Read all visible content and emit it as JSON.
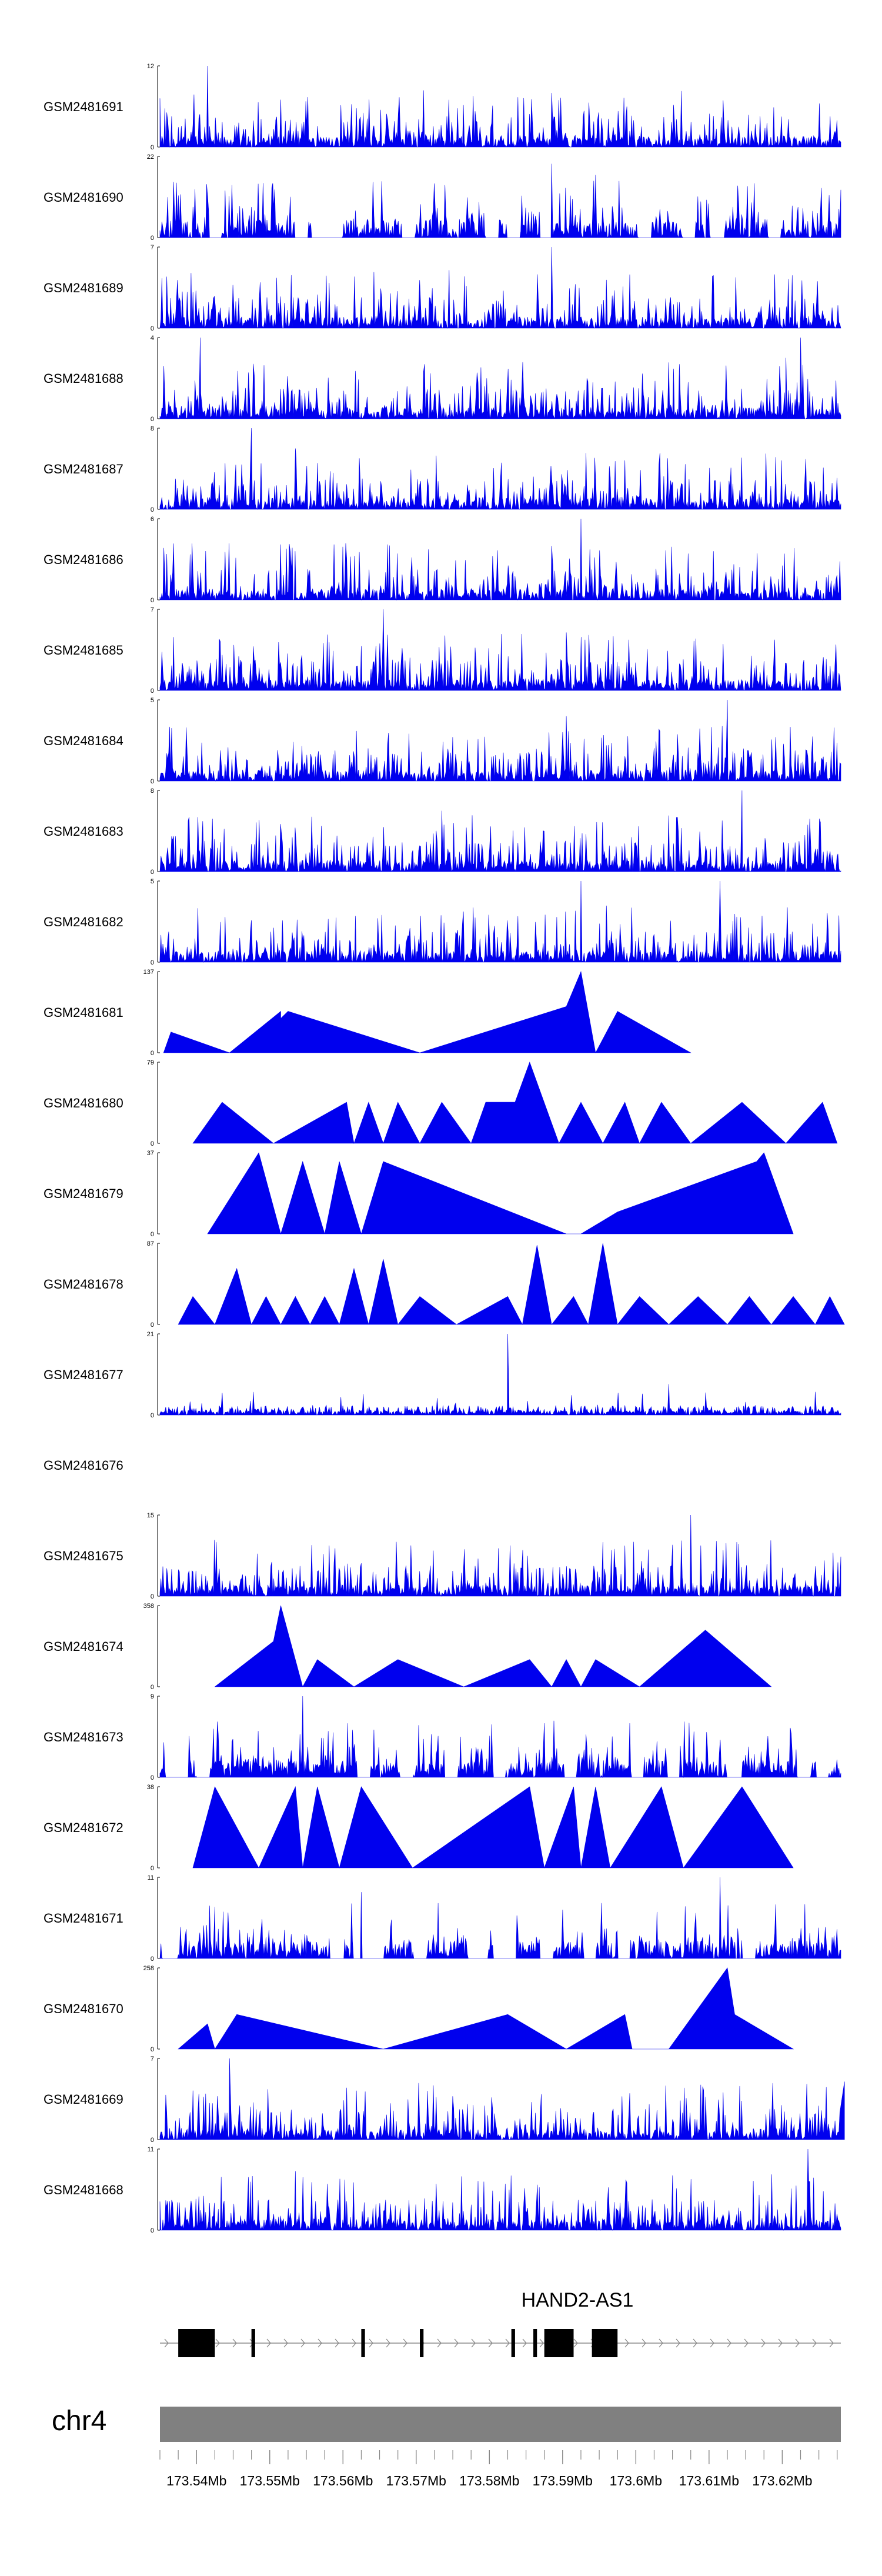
{
  "chart_data": {
    "type": "area",
    "title": "",
    "fill_color": "#0000ee",
    "region": {
      "chrom": "chr4",
      "start_mb": 173.535,
      "end_mb": 173.628
    },
    "tracks": [
      {
        "name": "GSM2481691",
        "ymax": 12,
        "style": "dense",
        "seed": 11,
        "peaks": [
          [
            173.5415,
            12
          ],
          [
            173.5515,
            7
          ],
          [
            173.5885,
            8
          ]
        ]
      },
      {
        "name": "GSM2481690",
        "ymax": 22,
        "style": "sparse",
        "seed": 23,
        "peaks": [
          [
            173.5885,
            20
          ],
          [
            173.5945,
            17
          ]
        ]
      },
      {
        "name": "GSM2481689",
        "ymax": 7,
        "style": "dense",
        "seed": 37,
        "peaks": [
          [
            173.5885,
            7
          ],
          [
            173.5745,
            5
          ]
        ]
      },
      {
        "name": "GSM2481688",
        "ymax": 4,
        "style": "dense",
        "seed": 41,
        "peaks": [
          [
            173.5405,
            4
          ],
          [
            173.6225,
            4
          ],
          [
            173.6205,
            3
          ]
        ]
      },
      {
        "name": "GSM2481687",
        "ymax": 8,
        "style": "dense",
        "seed": 53,
        "peaks": [
          [
            173.5475,
            8
          ],
          [
            173.5535,
            6
          ]
        ]
      },
      {
        "name": "GSM2481686",
        "ymax": 6,
        "style": "dense",
        "seed": 67,
        "peaks": [
          [
            173.5925,
            6
          ],
          [
            173.5885,
            4
          ]
        ]
      },
      {
        "name": "GSM2481685",
        "ymax": 7,
        "style": "dense",
        "seed": 71,
        "peaks": [
          [
            173.5655,
            7
          ],
          [
            173.5905,
            5
          ]
        ]
      },
      {
        "name": "GSM2481684",
        "ymax": 5,
        "style": "dense",
        "seed": 83,
        "peaks": [
          [
            173.6125,
            5
          ],
          [
            173.5905,
            4
          ]
        ]
      },
      {
        "name": "GSM2481683",
        "ymax": 8,
        "style": "dense",
        "seed": 97,
        "peaks": [
          [
            173.6145,
            8
          ],
          [
            173.5735,
            6
          ]
        ]
      },
      {
        "name": "GSM2481682",
        "ymax": 5,
        "style": "dense",
        "seed": 101,
        "peaks": [
          [
            173.6115,
            5
          ],
          [
            173.5925,
            5
          ]
        ]
      },
      {
        "name": "GSM2481681",
        "ymax": 137,
        "style": "coverage",
        "points": [
          [
            173.5355,
            0
          ],
          [
            173.5365,
            35
          ],
          [
            173.5445,
            0
          ],
          [
            173.5515,
            70
          ],
          [
            173.5515,
            58
          ],
          [
            173.5525,
            70
          ],
          [
            173.5705,
            0
          ],
          [
            173.5905,
            78
          ],
          [
            173.5925,
            137
          ],
          [
            173.5945,
            0
          ],
          [
            173.5975,
            70
          ],
          [
            173.6075,
            0
          ]
        ]
      },
      {
        "name": "GSM2481680",
        "ymax": 79,
        "style": "coverage",
        "points": [
          [
            173.5395,
            0
          ],
          [
            173.5435,
            40
          ],
          [
            173.5505,
            0
          ],
          [
            173.5605,
            40
          ],
          [
            173.5615,
            0
          ],
          [
            173.5635,
            40
          ],
          [
            173.5655,
            0
          ],
          [
            173.5675,
            40
          ],
          [
            173.5705,
            0
          ],
          [
            173.5735,
            40
          ],
          [
            173.5775,
            0
          ],
          [
            173.5795,
            40
          ],
          [
            173.5835,
            40
          ],
          [
            173.5855,
            79
          ],
          [
            173.5895,
            0
          ],
          [
            173.5925,
            40
          ],
          [
            173.5955,
            0
          ],
          [
            173.5985,
            40
          ],
          [
            173.6005,
            0
          ],
          [
            173.6035,
            40
          ],
          [
            173.6075,
            0
          ],
          [
            173.6145,
            40
          ],
          [
            173.6205,
            0
          ],
          [
            173.6255,
            40
          ],
          [
            173.6275,
            0
          ]
        ]
      },
      {
        "name": "GSM2481679",
        "ymax": 37,
        "style": "coverage",
        "points": [
          [
            173.5415,
            0
          ],
          [
            173.5485,
            37
          ],
          [
            173.5515,
            0
          ],
          [
            173.5545,
            33
          ],
          [
            173.5575,
            0
          ],
          [
            173.5595,
            33
          ],
          [
            173.5625,
            0
          ],
          [
            173.5655,
            33
          ],
          [
            173.5905,
            0
          ],
          [
            173.5925,
            0
          ],
          [
            173.5975,
            10
          ],
          [
            173.6165,
            33
          ],
          [
            173.6175,
            37
          ],
          [
            173.6215,
            0
          ]
        ]
      },
      {
        "name": "GSM2481678",
        "ymax": 87,
        "style": "coverage",
        "points": [
          [
            173.5375,
            0
          ],
          [
            173.5395,
            30
          ],
          [
            173.5425,
            0
          ],
          [
            173.5455,
            60
          ],
          [
            173.5475,
            0
          ],
          [
            173.5495,
            30
          ],
          [
            173.5515,
            0
          ],
          [
            173.5535,
            30
          ],
          [
            173.5555,
            0
          ],
          [
            173.5575,
            30
          ],
          [
            173.5595,
            0
          ],
          [
            173.5615,
            60
          ],
          [
            173.5635,
            0
          ],
          [
            173.5655,
            70
          ],
          [
            173.5675,
            0
          ],
          [
            173.5705,
            30
          ],
          [
            173.5755,
            0
          ],
          [
            173.5825,
            30
          ],
          [
            173.5845,
            0
          ],
          [
            173.5865,
            85
          ],
          [
            173.5885,
            0
          ],
          [
            173.5915,
            30
          ],
          [
            173.5935,
            0
          ],
          [
            173.5955,
            87
          ],
          [
            173.5975,
            0
          ],
          [
            173.6005,
            30
          ],
          [
            173.6045,
            0
          ],
          [
            173.6085,
            30
          ],
          [
            173.6125,
            0
          ],
          [
            173.6155,
            30
          ],
          [
            173.6185,
            0
          ],
          [
            173.6215,
            30
          ],
          [
            173.6245,
            0
          ],
          [
            173.6265,
            30
          ],
          [
            173.6285,
            0
          ]
        ]
      },
      {
        "name": "GSM2481677",
        "ymax": 21,
        "style": "sparse-low",
        "seed": 131,
        "peaks": [
          [
            173.5825,
            21
          ],
          [
            173.6045,
            8
          ],
          [
            173.6245,
            6
          ]
        ]
      },
      {
        "name": "GSM2481676",
        "ymax": null,
        "style": "empty"
      },
      {
        "name": "GSM2481675",
        "ymax": 15,
        "style": "dense",
        "seed": 149,
        "peaks": [
          [
            173.6075,
            15
          ],
          [
            173.5955,
            10
          ]
        ]
      },
      {
        "name": "GSM2481674",
        "ymax": 358,
        "style": "coverage",
        "points": [
          [
            173.5425,
            0
          ],
          [
            173.5505,
            200
          ],
          [
            173.5515,
            358
          ],
          [
            173.5545,
            0
          ],
          [
            173.5565,
            120
          ],
          [
            173.5615,
            0
          ],
          [
            173.5675,
            120
          ],
          [
            173.5765,
            0
          ],
          [
            173.5855,
            120
          ],
          [
            173.5885,
            0
          ],
          [
            173.5905,
            120
          ],
          [
            173.5925,
            0
          ],
          [
            173.5945,
            120
          ],
          [
            173.6005,
            0
          ],
          [
            173.6095,
            250
          ],
          [
            173.6185,
            0
          ]
        ]
      },
      {
        "name": "GSM2481673",
        "ymax": 9,
        "style": "sparse",
        "seed": 163,
        "peaks": [
          [
            173.5545,
            9
          ],
          [
            173.5875,
            6
          ]
        ]
      },
      {
        "name": "GSM2481672",
        "ymax": 38,
        "style": "coverage",
        "points": [
          [
            173.5395,
            0
          ],
          [
            173.5425,
            38
          ],
          [
            173.5485,
            0
          ],
          [
            173.5535,
            38
          ],
          [
            173.5545,
            0
          ],
          [
            173.5565,
            38
          ],
          [
            173.5595,
            0
          ],
          [
            173.5625,
            38
          ],
          [
            173.5695,
            0
          ],
          [
            173.5855,
            38
          ],
          [
            173.5875,
            0
          ],
          [
            173.5915,
            38
          ],
          [
            173.5925,
            0
          ],
          [
            173.5945,
            38
          ],
          [
            173.5965,
            0
          ],
          [
            173.6035,
            38
          ],
          [
            173.6065,
            0
          ],
          [
            173.6145,
            38
          ],
          [
            173.6215,
            0
          ]
        ]
      },
      {
        "name": "GSM2481671",
        "ymax": 11,
        "style": "sparse",
        "seed": 179,
        "peaks": [
          [
            173.6115,
            11
          ],
          [
            173.5625,
            9
          ],
          [
            173.5425,
            7
          ]
        ]
      },
      {
        "name": "GSM2481670",
        "ymax": 258,
        "style": "coverage",
        "points": [
          [
            173.5375,
            0
          ],
          [
            173.5415,
            80
          ],
          [
            173.5425,
            0
          ],
          [
            173.5455,
            110
          ],
          [
            173.5655,
            0
          ],
          [
            173.5825,
            110
          ],
          [
            173.5905,
            0
          ],
          [
            173.5985,
            110
          ],
          [
            173.5995,
            0
          ],
          [
            173.6045,
            0
          ],
          [
            173.6125,
            258
          ],
          [
            173.6135,
            110
          ],
          [
            173.6215,
            0
          ]
        ]
      },
      {
        "name": "GSM2481669",
        "ymax": 7,
        "style": "dense",
        "seed": 191,
        "peaks": [
          [
            173.5445,
            7
          ],
          [
            173.6285,
            5
          ]
        ]
      },
      {
        "name": "GSM2481668",
        "ymax": 11,
        "style": "dense",
        "seed": 199,
        "peaks": [
          [
            173.6235,
            11
          ],
          [
            173.5535,
            8
          ]
        ]
      }
    ],
    "gene_track": {
      "gene_name": "HAND2-AS1",
      "strand": "+",
      "exons": [
        [
          173.5375,
          173.5425
        ],
        [
          173.5475,
          173.548
        ],
        [
          173.5625,
          173.563
        ],
        [
          173.5705,
          173.571
        ],
        [
          173.583,
          173.5835
        ],
        [
          173.586,
          173.5865
        ],
        [
          173.5875,
          173.5915
        ],
        [
          173.594,
          173.5975
        ]
      ],
      "exon_color": "#000000",
      "line_color": "#888888"
    },
    "ideogram": {
      "chrom_label": "chr4",
      "color": "#808080"
    },
    "axis": {
      "ticks": [
        173.54,
        173.55,
        173.56,
        173.57,
        173.58,
        173.59,
        173.6,
        173.61,
        173.62
      ],
      "tick_labels": [
        "173.54Mb",
        "173.55Mb",
        "173.56Mb",
        "173.57Mb",
        "173.58Mb",
        "173.59Mb",
        "173.6Mb",
        "173.61Mb",
        "173.62Mb"
      ],
      "minor_step_mb": 0.0025
    }
  }
}
